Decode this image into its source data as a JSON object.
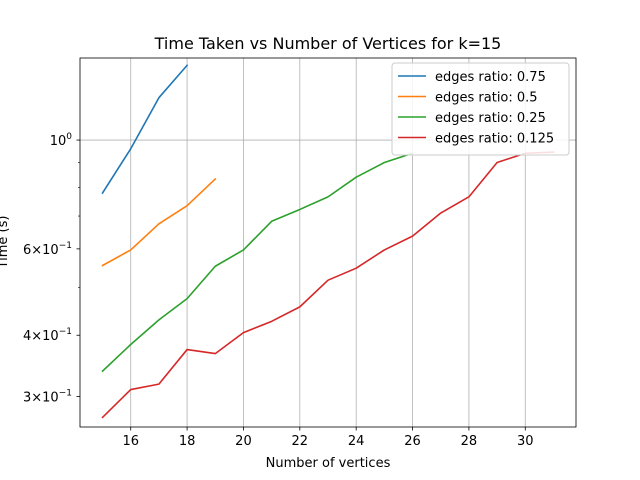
{
  "chart_data": {
    "type": "line",
    "title": "Time Taken vs Number of Vertices for k=15",
    "xlabel": "Number of vertices",
    "ylabel": "Time (s)",
    "xlim": [
      14.2,
      31.8
    ],
    "ylim": [
      0.26,
      1.47
    ],
    "yscale": "log",
    "grid": "vertical",
    "legend_position": "top-right",
    "x_ticks": [
      16,
      18,
      20,
      22,
      24,
      26,
      28,
      30
    ],
    "y_ticks": [
      {
        "value": 1.0,
        "base": "10",
        "exp": "0"
      },
      {
        "value": 0.6,
        "base": "6×10",
        "exp": "−1"
      },
      {
        "value": 0.4,
        "base": "4×10",
        "exp": "−1"
      },
      {
        "value": 0.3,
        "base": "3×10",
        "exp": "−1"
      }
    ],
    "series": [
      {
        "name": "edges ratio: 0.75",
        "color": "#1f77b4",
        "x": [
          15,
          16,
          17,
          18
        ],
        "y": [
          0.78,
          0.96,
          1.22,
          1.42
        ]
      },
      {
        "name": "edges ratio: 0.5",
        "color": "#ff7f0e",
        "x": [
          15,
          16,
          17,
          18,
          19
        ],
        "y": [
          0.555,
          0.597,
          0.675,
          0.735,
          0.833
        ]
      },
      {
        "name": "edges ratio: 0.25",
        "color": "#2ca02c",
        "x": [
          15,
          16,
          17,
          18,
          19,
          20,
          21,
          22,
          23,
          24,
          25,
          26
        ],
        "y": [
          0.338,
          0.383,
          0.43,
          0.475,
          0.553,
          0.597,
          0.683,
          0.722,
          0.766,
          0.84,
          0.9,
          0.94
        ]
      },
      {
        "name": "edges ratio: 0.125",
        "color": "#d62728",
        "x": [
          15,
          16,
          17,
          18,
          19,
          20,
          21,
          22,
          23,
          24,
          25,
          26,
          27,
          28,
          29,
          30,
          31
        ],
        "y": [
          0.272,
          0.31,
          0.318,
          0.374,
          0.367,
          0.405,
          0.427,
          0.457,
          0.518,
          0.548,
          0.597,
          0.637,
          0.71,
          0.766,
          0.9,
          0.94,
          0.945
        ]
      }
    ]
  }
}
